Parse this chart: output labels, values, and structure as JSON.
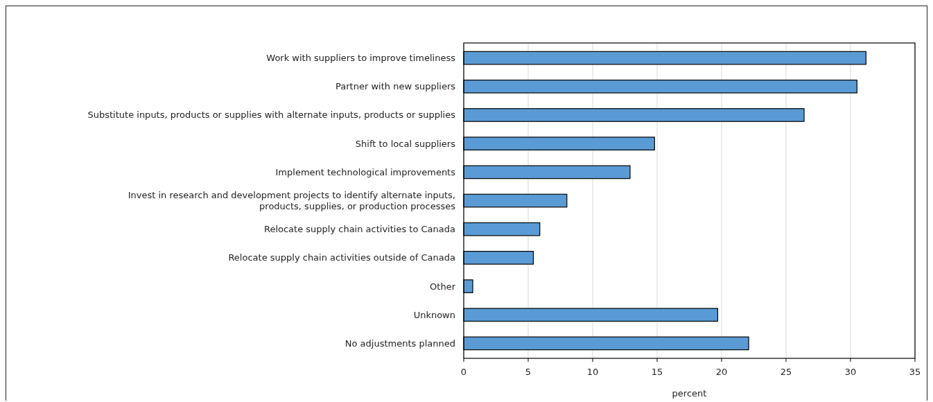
{
  "chart_data": {
    "type": "bar",
    "orientation": "horizontal",
    "xlabel": "percent",
    "categories": [
      "Work with suppliers to improve timeliness",
      "Partner with new suppliers",
      "Substitute inputs, products or supplies with alternate inputs, products or supplies",
      "Shift to local suppliers",
      "Implement technological improvements",
      "Invest in research and development projects to identify alternate inputs,\nproducts, supplies, or production processes",
      "Relocate supply chain activities to Canada",
      "Relocate supply chain activities outside of Canada",
      "Other",
      "Unknown",
      "No adjustments planned"
    ],
    "values": [
      31.2,
      30.5,
      26.4,
      14.8,
      12.9,
      8.0,
      5.9,
      5.4,
      0.7,
      19.7,
      22.1
    ],
    "color": "#5b9bd5",
    "xlim": [
      0,
      35
    ],
    "xticks": [
      0,
      5,
      10,
      15,
      20,
      25,
      30,
      35
    ],
    "grid": "x"
  }
}
